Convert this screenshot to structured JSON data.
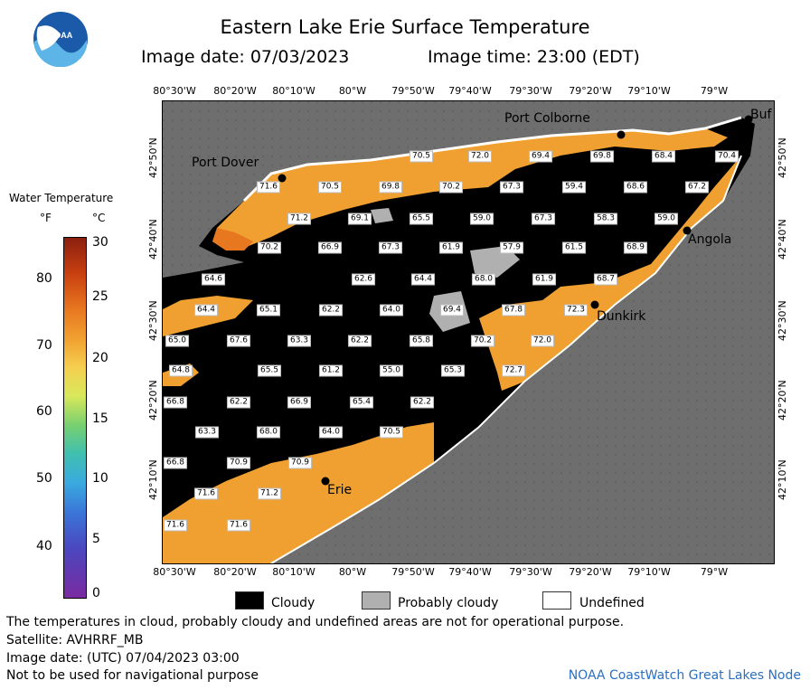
{
  "header": {
    "title": "Eastern Lake Erie Surface Temperature",
    "image_date": "Image date: 07/03/2023",
    "image_time": "Image time: 23:00 (EDT)"
  },
  "logo": {
    "text": "NOAA"
  },
  "legend": {
    "title": "Water Temperature",
    "unit_f": "°F",
    "unit_c": "°C",
    "f_ticks": [
      "80",
      "70",
      "60",
      "50",
      "40"
    ],
    "c_ticks": [
      "30",
      "25",
      "20",
      "15",
      "10",
      "5",
      "0"
    ]
  },
  "axes": {
    "lon_labels": [
      "80°30'W",
      "80°20'W",
      "80°10'W",
      "80°W",
      "79°50'W",
      "79°40'W",
      "79°30'W",
      "79°20'W",
      "79°10'W",
      "79°W"
    ],
    "lat_labels": [
      "42°50'N",
      "42°40'N",
      "42°30'N",
      "42°20'N",
      "42°10'N"
    ]
  },
  "places": {
    "port_colborne": "Port Colborne",
    "port_dover": "Port Dover",
    "angola": "Angola",
    "dunkirk": "Dunkirk",
    "erie": "Erie",
    "buffalo": "Buf"
  },
  "temperatures": [
    "70.5",
    "72.0",
    "69.4",
    "69.8",
    "68.4",
    "70.4",
    "71.6",
    "70.5",
    "69.8",
    "70.2",
    "67.3",
    "59.4",
    "68.6",
    "67.2",
    "71.2",
    "69.1",
    "65.5",
    "59.0",
    "67.3",
    "58.3",
    "59.0",
    "70.2",
    "66.9",
    "67.3",
    "61.9",
    "57.9",
    "61.5",
    "68.9",
    "64.6",
    "62.6",
    "64.4",
    "68.0",
    "61.9",
    "68.7",
    "64.4",
    "65.1",
    "62.2",
    "64.0",
    "69.4",
    "67.8",
    "72.3",
    "65.0",
    "67.6",
    "63.3",
    "62.2",
    "65.8",
    "70.2",
    "72.0",
    "64.8",
    "65.5",
    "61.2",
    "55.0",
    "65.3",
    "72.7",
    "66.8",
    "62.2",
    "66.9",
    "65.4",
    "62.2",
    "63.3",
    "68.0",
    "64.0",
    "70.5",
    "66.8",
    "70.9",
    "70.9",
    "71.6",
    "71.2",
    "71.6",
    "71.6"
  ],
  "key": {
    "cloudy": "Cloudy",
    "probably_cloudy": "Probably cloudy",
    "undefined": "Undefined"
  },
  "footer": {
    "disclaimer": "The temperatures in cloud, probably cloudy and undefined areas are not for operational purpose.",
    "satellite": "Satellite: AVHRRF_MB",
    "utc_date": "Image date: (UTC) 07/04/2023  03:00",
    "navigation": "Not to be used for navigational purpose",
    "node": "NOAA CoastWatch Great Lakes Node"
  },
  "colors": {
    "land": "#6e6e6e",
    "cloud": "#000000",
    "warm_water": "#f0a030",
    "probably_cloudy": "#b0b0b0",
    "undefined": "#ffffff",
    "node_text": "#2c6fbf"
  }
}
